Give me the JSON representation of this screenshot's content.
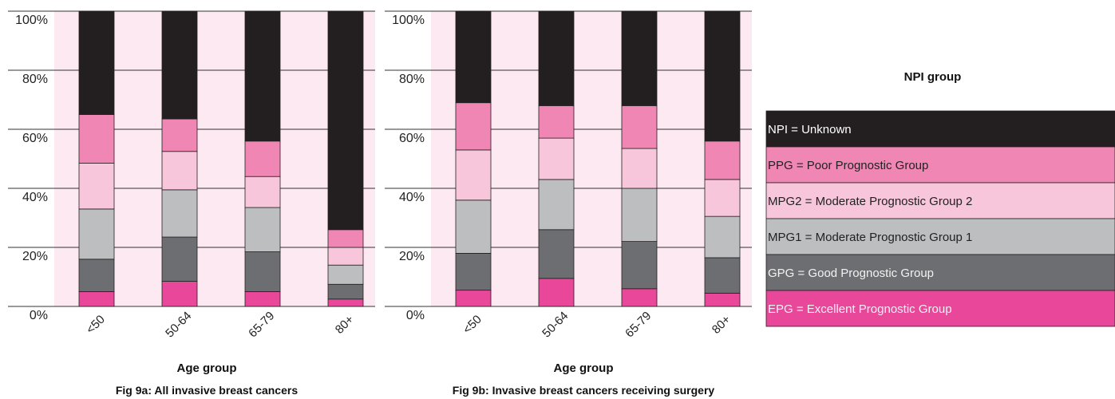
{
  "colors": {
    "background_panel": "#fde9f1",
    "grid": "#333333",
    "NPI = Unknown": "#231f20",
    "PPG = Poor Prognostic Group": "#ef86b4",
    "MPG2 = Moderate Prognostic Group 2": "#f7c6da",
    "MPG1 = Moderate Prognostic Group 1": "#bcbec0",
    "GPG = Good Prognostic Group": "#6d6e71",
    "EPG = Excellent Prognostic Group": "#e8479a"
  },
  "legend": {
    "title": "NPI group",
    "entries": [
      "NPI = Unknown",
      "PPG = Poor Prognostic Group",
      "MPG2 = Moderate Prognostic Group 2",
      "MPG1 = Moderate Prognostic Group 1",
      "GPG = Good Prognostic Group",
      "EPG = Excellent Prognostic Group"
    ]
  },
  "chart_data": [
    {
      "type": "bar",
      "stacked": true,
      "title": "Fig 9a: All invasive breast cancers",
      "xlabel": "Age group",
      "ylabel": "",
      "ylim": [
        0,
        100
      ],
      "yticks": [
        "0%",
        "20%",
        "40%",
        "60%",
        "80%",
        "100%"
      ],
      "categories": [
        "<50",
        "50-64",
        "65-79",
        "80+"
      ],
      "series": [
        {
          "name": "EPG = Excellent Prognostic Group",
          "values": [
            5,
            8.5,
            5,
            2.5
          ]
        },
        {
          "name": "GPG = Good Prognostic Group",
          "values": [
            11,
            15,
            13.5,
            5
          ]
        },
        {
          "name": "MPG1 = Moderate Prognostic Group 1",
          "values": [
            17,
            16,
            15,
            6.5
          ]
        },
        {
          "name": "MPG2 = Moderate Prognostic Group 2",
          "values": [
            15.5,
            13,
            10.5,
            6
          ]
        },
        {
          "name": "PPG = Poor Prognostic Group",
          "values": [
            16.5,
            11,
            12,
            6
          ]
        },
        {
          "name": "NPI = Unknown",
          "values": [
            35,
            36.5,
            44,
            74
          ]
        }
      ]
    },
    {
      "type": "bar",
      "stacked": true,
      "title": "Fig 9b: Invasive breast cancers receiving surgery",
      "xlabel": "Age group",
      "ylabel": "",
      "ylim": [
        0,
        100
      ],
      "yticks": [
        "0%",
        "20%",
        "40%",
        "60%",
        "80%",
        "100%"
      ],
      "categories": [
        "<50",
        "50-64",
        "65-79",
        "80+"
      ],
      "series": [
        {
          "name": "EPG = Excellent Prognostic Group",
          "values": [
            5.5,
            9.5,
            6,
            4.5
          ]
        },
        {
          "name": "GPG = Good Prognostic Group",
          "values": [
            12.5,
            16.5,
            16,
            12
          ]
        },
        {
          "name": "MPG1 = Moderate Prognostic Group 1",
          "values": [
            18,
            17,
            18,
            14
          ]
        },
        {
          "name": "MPG2 = Moderate Prognostic Group 2",
          "values": [
            17,
            14,
            13.5,
            12.5
          ]
        },
        {
          "name": "PPG = Poor Prognostic Group",
          "values": [
            16,
            11,
            14.5,
            13
          ]
        },
        {
          "name": "NPI = Unknown",
          "values": [
            31,
            32,
            32,
            44
          ]
        }
      ]
    }
  ]
}
